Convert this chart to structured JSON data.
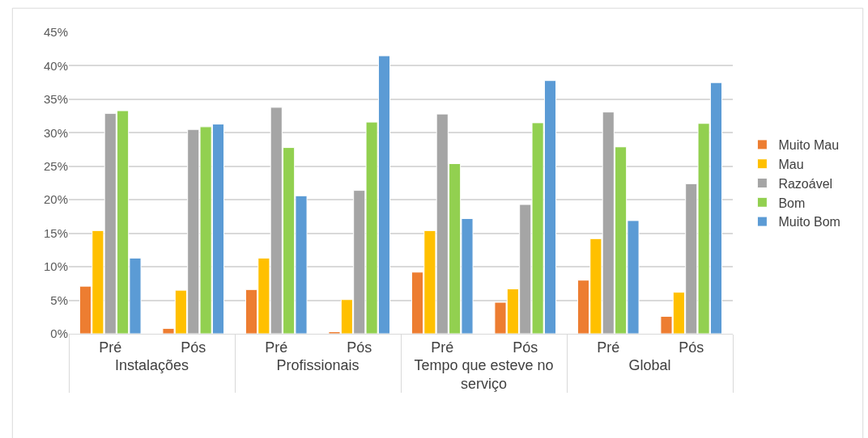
{
  "chart_data": {
    "type": "bar",
    "categories": [
      "Pré",
      "Pós",
      "Pré",
      "Pós",
      "Pré",
      "Pós",
      "Pré",
      "Pós"
    ],
    "annotations": [
      "Instalações",
      "Profissionais",
      "Tempo que esteve no serviço",
      "Global"
    ],
    "series": [
      {
        "name": "Muito Mau",
        "color": "#ed7d31",
        "values": [
          7.1,
          0.8,
          6.6,
          0.3,
          9.2,
          4.7,
          8.0,
          2.6
        ]
      },
      {
        "name": "Mau",
        "color": "#ffc000",
        "values": [
          15.4,
          6.5,
          11.3,
          5.1,
          15.4,
          6.7,
          14.2,
          6.2
        ]
      },
      {
        "name": "Razoável",
        "color": "#a5a5a5",
        "values": [
          32.9,
          30.5,
          33.8,
          21.4,
          32.8,
          19.3,
          33.1,
          22.4
        ]
      },
      {
        "name": "Bom",
        "color": "#92d050",
        "values": [
          33.3,
          30.9,
          27.8,
          31.6,
          25.4,
          31.5,
          27.9,
          31.4
        ]
      },
      {
        "name": "Muito Bom",
        "color": "#5b9bd5",
        "values": [
          11.3,
          31.3,
          20.6,
          41.5,
          17.2,
          37.8,
          16.9,
          37.5
        ]
      }
    ],
    "ylim": [
      0,
      45
    ],
    "yticks": [
      {
        "value": 0,
        "label": "0%"
      },
      {
        "value": 5,
        "label": "5%"
      },
      {
        "value": 10,
        "label": "10%"
      },
      {
        "value": 15,
        "label": "15%"
      },
      {
        "value": 20,
        "label": "20%"
      },
      {
        "value": 25,
        "label": "25%"
      },
      {
        "value": 30,
        "label": "30%"
      },
      {
        "value": 35,
        "label": "35%"
      },
      {
        "value": 40,
        "label": "40%"
      },
      {
        "value": 45,
        "label": "45%"
      }
    ],
    "grid": "y",
    "legend": "right"
  }
}
